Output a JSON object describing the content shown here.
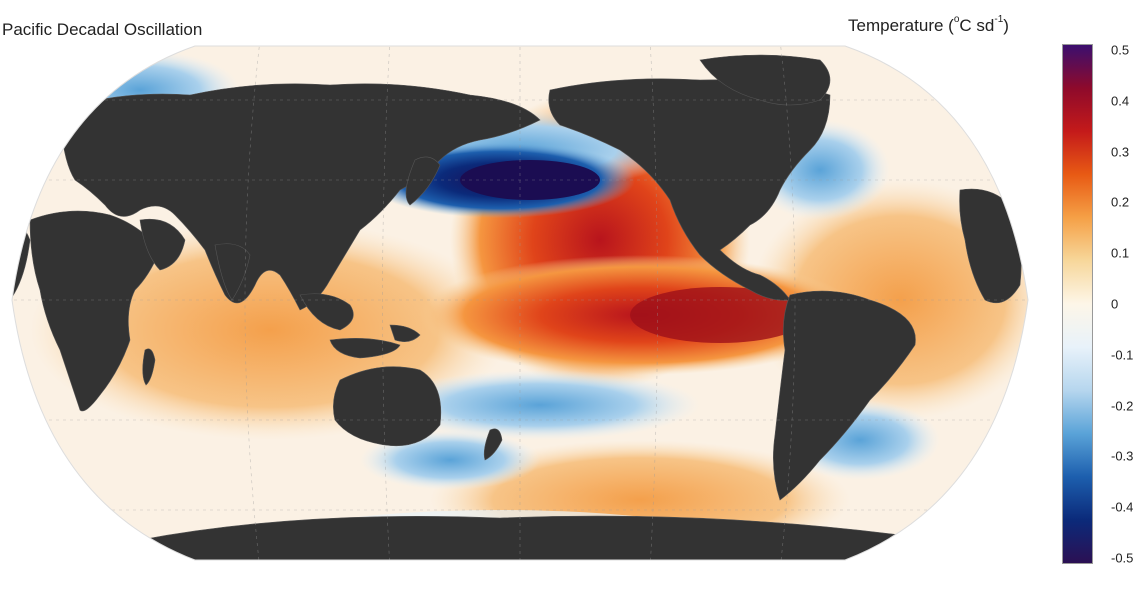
{
  "map": {
    "title": "Pacific Decadal Oscillation",
    "units": {
      "prefix": "Temperature (",
      "degree_sup": "o",
      "unit_mid": "C sd",
      "exp_sup": "-1",
      "suffix": ")"
    },
    "projection": "Robinson",
    "center_longitude": "Pacific-centered",
    "land_color": "#333333",
    "ocean_outline_color": "#dddddd"
  },
  "colorbar": {
    "min": -0.5,
    "max": 0.5,
    "ticks": [
      "0.5",
      "0.4",
      "0.3",
      "0.2",
      "0.1",
      "0",
      "-0.1",
      "-0.2",
      "-0.3",
      "-0.4",
      "-0.5"
    ],
    "stops": [
      "#3b0f6f",
      "#8e0a2b",
      "#c41a1a",
      "#e85a14",
      "#f5a046",
      "#f7d79b",
      "#fdf6e8",
      "#e8f2fa",
      "#b6d6ee",
      "#5aa3d8",
      "#1d5fae",
      "#0b2a7a",
      "#2b1053"
    ]
  }
}
